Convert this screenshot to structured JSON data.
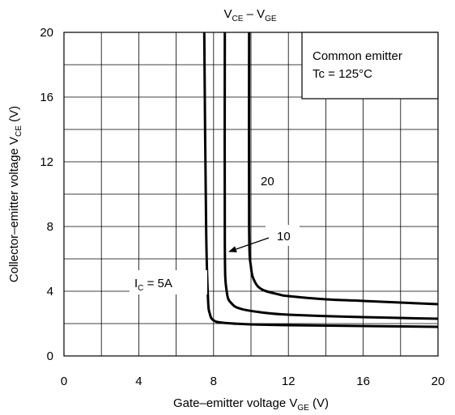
{
  "chart_data": {
    "type": "line",
    "title": "V_CE – V_GE",
    "title_main": "V",
    "title_sub1": "CE",
    "title_dash": " – V",
    "title_sub2": "GE",
    "xlabel_main": "Gate–emitter voltage  V",
    "xlabel_sub": "GE",
    "xlabel_unit": " (V)",
    "ylabel_main": "Collector–emitter voltage   V",
    "ylabel_sub": "CE",
    "ylabel_unit": " (V)",
    "xlim": [
      0,
      20
    ],
    "ylim": [
      0,
      20
    ],
    "x_ticks": [
      0,
      4,
      8,
      12,
      16,
      20
    ],
    "y_ticks": [
      0,
      4,
      8,
      12,
      16,
      20
    ],
    "x_tick_labels": [
      "0",
      "4",
      "8",
      "12",
      "16",
      "20"
    ],
    "y_tick_labels": [
      "0",
      "4",
      "8",
      "12",
      "16",
      "20"
    ],
    "grid": true,
    "annotation_box": {
      "line1": "Common emitter",
      "line2": "Tc = 125°C"
    },
    "series": [
      {
        "name": "5",
        "x": [
          7.5,
          7.6,
          7.7,
          7.8,
          8.0,
          8.5,
          10,
          12,
          16,
          20
        ],
        "y": [
          20,
          8,
          3.6,
          2.6,
          2.2,
          2.05,
          1.95,
          1.9,
          1.85,
          1.8
        ]
      },
      {
        "name": "10",
        "x": [
          8.6,
          8.6,
          8.7,
          9.0,
          9.5,
          10.5,
          12,
          16,
          20
        ],
        "y": [
          20,
          7,
          4.0,
          3.2,
          2.9,
          2.7,
          2.55,
          2.4,
          2.3
        ]
      },
      {
        "name": "20",
        "x": [
          9.9,
          9.9,
          10.0,
          10.2,
          10.6,
          11.5,
          12,
          14,
          16,
          20
        ],
        "y": [
          20,
          8,
          5.5,
          4.6,
          4.1,
          3.8,
          3.7,
          3.5,
          3.4,
          3.2
        ]
      }
    ],
    "curve_labels": {
      "ic_main": "I",
      "ic_sub": "C",
      "ic_value": " = 5A",
      "label_10": "10",
      "label_20": "20"
    }
  }
}
